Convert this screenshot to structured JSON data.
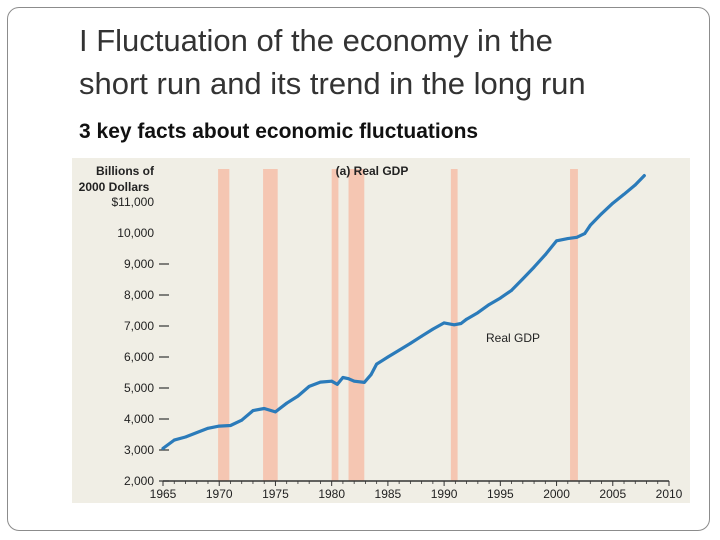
{
  "slide": {
    "title_line1": "I Fluctuation of the economy in the",
    "title_line2": "short run and its trend in the long run",
    "subtitle": "3 key facts about economic fluctuations"
  },
  "chart_data": {
    "type": "line",
    "title": "(a) Real GDP",
    "ylabel_line1": "Billions of",
    "ylabel_line2": "2000 Dollars",
    "xlabel": "",
    "series_label": "Real GDP",
    "xlim": [
      1965,
      2010
    ],
    "ylim": [
      2000,
      12000
    ],
    "x_ticks": [
      "1965",
      "1970",
      "1975",
      "1980",
      "1985",
      "1990",
      "1995",
      "2000",
      "2005",
      "2010"
    ],
    "y_ticks": [
      {
        "value": 11000,
        "label": "$11,000"
      },
      {
        "value": 10000,
        "label": "10,000"
      },
      {
        "value": 9000,
        "label": "9,000"
      },
      {
        "value": 8000,
        "label": "8,000"
      },
      {
        "value": 7000,
        "label": "7,000"
      },
      {
        "value": 6000,
        "label": "6,000"
      },
      {
        "value": 5000,
        "label": "5,000"
      },
      {
        "value": 4000,
        "label": "4,000"
      },
      {
        "value": 3000,
        "label": "3,000"
      },
      {
        "value": 2000,
        "label": "2,000"
      }
    ],
    "recessions": [
      {
        "start": 1969.9,
        "end": 1970.9
      },
      {
        "start": 1973.9,
        "end": 1975.2
      },
      {
        "start": 1980.0,
        "end": 1980.6
      },
      {
        "start": 1981.5,
        "end": 1982.9
      },
      {
        "start": 1990.6,
        "end": 1991.2
      },
      {
        "start": 2001.2,
        "end": 2001.9
      }
    ],
    "series": [
      {
        "name": "Real GDP",
        "color": "#2b7bba",
        "points": [
          [
            1965.0,
            3050
          ],
          [
            1966.0,
            3320
          ],
          [
            1967.0,
            3420
          ],
          [
            1968.0,
            3560
          ],
          [
            1969.0,
            3700
          ],
          [
            1970.0,
            3770
          ],
          [
            1971.0,
            3790
          ],
          [
            1972.0,
            3960
          ],
          [
            1973.0,
            4270
          ],
          [
            1974.0,
            4340
          ],
          [
            1975.0,
            4230
          ],
          [
            1976.0,
            4510
          ],
          [
            1977.0,
            4740
          ],
          [
            1978.0,
            5050
          ],
          [
            1979.0,
            5190
          ],
          [
            1980.0,
            5220
          ],
          [
            1980.5,
            5120
          ],
          [
            1981.0,
            5340
          ],
          [
            1981.5,
            5300
          ],
          [
            1982.0,
            5220
          ],
          [
            1982.9,
            5180
          ],
          [
            1983.5,
            5430
          ],
          [
            1984.0,
            5770
          ],
          [
            1985.0,
            6000
          ],
          [
            1986.0,
            6220
          ],
          [
            1987.0,
            6440
          ],
          [
            1988.0,
            6670
          ],
          [
            1989.0,
            6900
          ],
          [
            1990.0,
            7100
          ],
          [
            1990.9,
            7040
          ],
          [
            1991.5,
            7080
          ],
          [
            1992.0,
            7220
          ],
          [
            1993.0,
            7430
          ],
          [
            1994.0,
            7690
          ],
          [
            1995.0,
            7900
          ],
          [
            1996.0,
            8150
          ],
          [
            1997.0,
            8520
          ],
          [
            1998.0,
            8900
          ],
          [
            1999.0,
            9300
          ],
          [
            2000.0,
            9750
          ],
          [
            2001.0,
            9820
          ],
          [
            2001.8,
            9860
          ],
          [
            2002.5,
            9980
          ],
          [
            2003.0,
            10250
          ],
          [
            2004.0,
            10620
          ],
          [
            2005.0,
            10960
          ],
          [
            2006.0,
            11250
          ],
          [
            2007.0,
            11550
          ],
          [
            2007.8,
            11850
          ]
        ]
      }
    ],
    "colors": {
      "recession_band": "#f5c6b2",
      "panel_background": "#f0eee5",
      "axis": "#333333"
    }
  }
}
